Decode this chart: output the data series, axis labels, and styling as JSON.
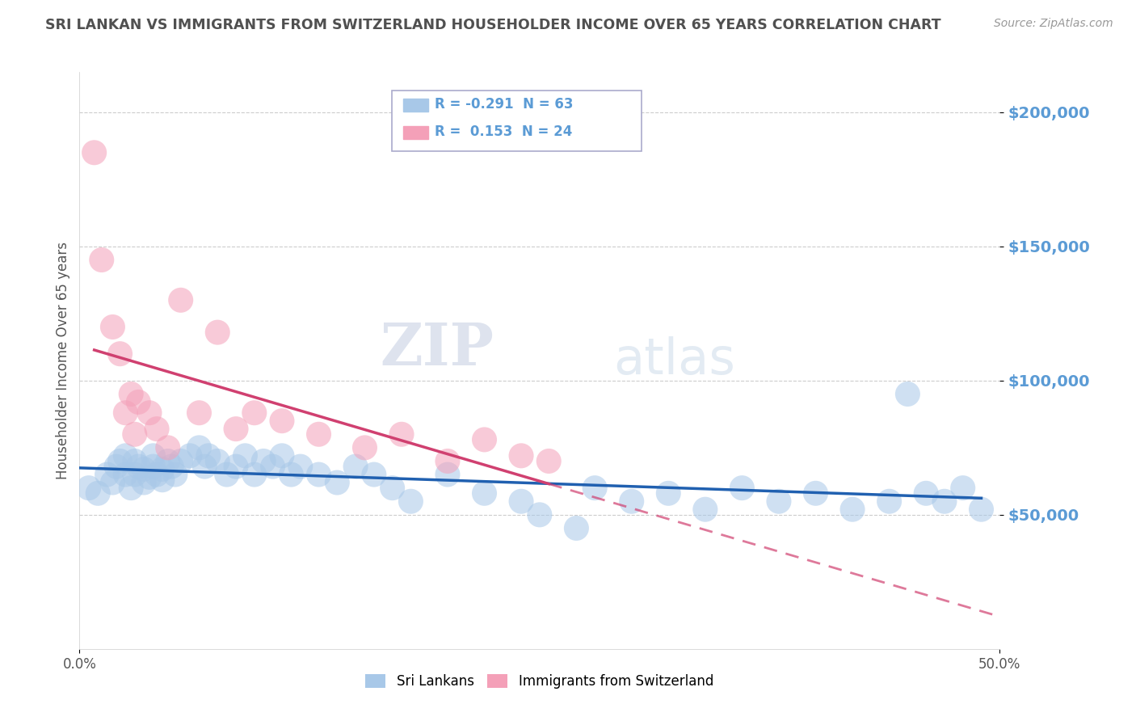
{
  "title": "SRI LANKAN VS IMMIGRANTS FROM SWITZERLAND HOUSEHOLDER INCOME OVER 65 YEARS CORRELATION CHART",
  "source": "Source: ZipAtlas.com",
  "ylabel": "Householder Income Over 65 years",
  "watermark_zip": "ZIP",
  "watermark_atlas": "atlas",
  "xlim": [
    0.0,
    0.5
  ],
  "ylim": [
    0,
    215000
  ],
  "yticks": [
    50000,
    100000,
    150000,
    200000
  ],
  "ytick_labels": [
    "$50,000",
    "$100,000",
    "$150,000",
    "$200,000"
  ],
  "xtick_vals": [
    0.0,
    0.5
  ],
  "xtick_labels": [
    "0.0%",
    "50.0%"
  ],
  "blue_label": "Sri Lankans",
  "pink_label": "Immigrants from Switzerland",
  "blue_r": "-0.291",
  "blue_n": "63",
  "pink_r": "0.153",
  "pink_n": "24",
  "blue_color": "#a8c8e8",
  "pink_color": "#f4a0b8",
  "blue_line_color": "#2060b0",
  "pink_line_color": "#d04070",
  "title_color": "#505050",
  "axis_label_color": "#5b9bd5",
  "grid_color": "#cccccc",
  "background_color": "#ffffff",
  "blue_scatter_x": [
    0.005,
    0.01,
    0.015,
    0.018,
    0.02,
    0.022,
    0.025,
    0.025,
    0.028,
    0.03,
    0.03,
    0.032,
    0.035,
    0.035,
    0.038,
    0.04,
    0.04,
    0.042,
    0.045,
    0.045,
    0.048,
    0.05,
    0.052,
    0.055,
    0.06,
    0.065,
    0.068,
    0.07,
    0.075,
    0.08,
    0.085,
    0.09,
    0.095,
    0.1,
    0.105,
    0.11,
    0.115,
    0.12,
    0.13,
    0.14,
    0.15,
    0.16,
    0.17,
    0.18,
    0.2,
    0.22,
    0.24,
    0.25,
    0.27,
    0.28,
    0.3,
    0.32,
    0.34,
    0.36,
    0.38,
    0.4,
    0.42,
    0.44,
    0.45,
    0.46,
    0.47,
    0.48,
    0.49
  ],
  "blue_scatter_y": [
    60000,
    58000,
    65000,
    62000,
    68000,
    70000,
    65000,
    72000,
    60000,
    65000,
    70000,
    68000,
    62000,
    67000,
    64000,
    68000,
    72000,
    65000,
    63000,
    67000,
    70000,
    68000,
    65000,
    70000,
    72000,
    75000,
    68000,
    72000,
    70000,
    65000,
    68000,
    72000,
    65000,
    70000,
    68000,
    72000,
    65000,
    68000,
    65000,
    62000,
    68000,
    65000,
    60000,
    55000,
    65000,
    58000,
    55000,
    50000,
    45000,
    60000,
    55000,
    58000,
    52000,
    60000,
    55000,
    58000,
    52000,
    55000,
    95000,
    58000,
    55000,
    60000,
    52000
  ],
  "pink_scatter_x": [
    0.008,
    0.012,
    0.018,
    0.022,
    0.025,
    0.028,
    0.03,
    0.032,
    0.038,
    0.042,
    0.048,
    0.055,
    0.065,
    0.075,
    0.085,
    0.095,
    0.11,
    0.13,
    0.155,
    0.175,
    0.2,
    0.22,
    0.24,
    0.255
  ],
  "pink_scatter_y": [
    185000,
    145000,
    120000,
    110000,
    88000,
    95000,
    80000,
    92000,
    88000,
    82000,
    75000,
    130000,
    88000,
    118000,
    82000,
    88000,
    85000,
    80000,
    75000,
    80000,
    70000,
    78000,
    72000,
    70000
  ],
  "blue_size": 500,
  "pink_size": 500,
  "pink_trend_solid_end": 0.255,
  "pink_trend_dash_start": 0.255,
  "pink_trend_dash_end": 0.5
}
